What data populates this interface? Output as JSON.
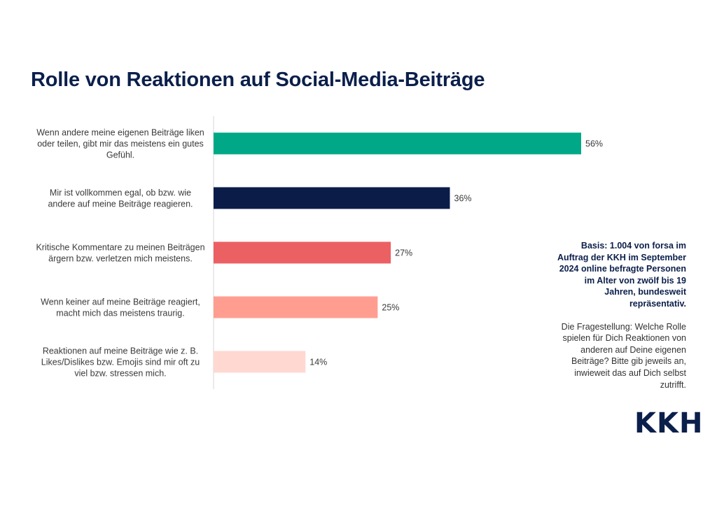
{
  "title": "Rolle von Reaktionen auf Social-Media-Beiträge",
  "chart_data": {
    "type": "bar",
    "orientation": "horizontal",
    "categories": [
      [
        "Wenn andere meine eigenen Beiträge liken",
        "oder teilen, gibt mir das meistens ein gutes",
        "Gefühl."
      ],
      [
        "Mir ist vollkommen egal, ob bzw. wie",
        "andere auf meine Beiträge reagieren."
      ],
      [
        "Kritische Kommentare zu meinen Beiträgen",
        "ärgern bzw. verletzen mich meistens."
      ],
      [
        "Wenn keiner auf meine Beiträge reagiert,",
        "macht mich das meistens traurig."
      ],
      [
        "Reaktionen auf meine Beiträge wie z. B.",
        "Likes/Dislikes bzw. Emojis sind mir oft zu",
        "viel bzw. stressen mich."
      ]
    ],
    "values": [
      56,
      36,
      27,
      25,
      14
    ],
    "value_labels": [
      "56%",
      "36%",
      "27%",
      "25%",
      "14%"
    ],
    "colors": [
      "#00a887",
      "#0b1c48",
      "#eb6063",
      "#ff9e90",
      "#ffd8d2"
    ],
    "xlim": [
      0,
      100
    ],
    "grid": false,
    "legend": "none"
  },
  "notes": {
    "basis": "Basis: 1.004 von forsa im Auftrag der KKH im September 2024 online befragte Personen im Alter von zwölf bis 19 Jahren, bundesweit repräsentativ.",
    "question": "Die Fragestellung: Welche Rolle spielen für Dich Reaktionen von anderen auf Deine eigenen Beiträge? Bitte gib jeweils an, inwieweit das auf Dich selbst zutrifft."
  },
  "logo_text": "KKH"
}
